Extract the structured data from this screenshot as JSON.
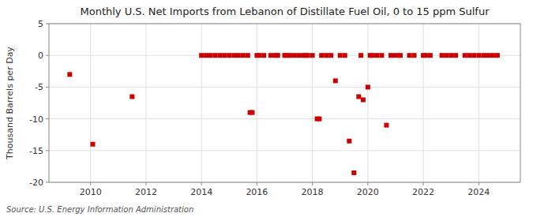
{
  "chart_data": {
    "type": "scatter",
    "title": "Monthly U.S. Net Imports from Lebanon of Distillate Fuel Oil, 0 to 15 ppm Sulfur",
    "y_label": "Thousand Barrels per Day",
    "source": "Source: U.S. Energy Information Administration",
    "x": [
      2009.25,
      2010.08,
      2011.5,
      2014.0,
      2014.17,
      2014.33,
      2014.5,
      2014.67,
      2014.83,
      2015.0,
      2015.17,
      2015.33,
      2015.5,
      2015.67,
      2015.75,
      2015.83,
      2016.0,
      2016.08,
      2016.25,
      2016.5,
      2016.67,
      2016.75,
      2017.0,
      2017.08,
      2017.17,
      2017.33,
      2017.5,
      2017.67,
      2017.75,
      2017.83,
      2018.0,
      2018.17,
      2018.25,
      2018.33,
      2018.5,
      2018.67,
      2018.83,
      2019.0,
      2019.17,
      2019.33,
      2019.5,
      2019.67,
      2019.75,
      2019.83,
      2020.0,
      2020.08,
      2020.17,
      2020.33,
      2020.5,
      2020.67,
      2020.83,
      2021.0,
      2021.17,
      2021.5,
      2021.67,
      2022.0,
      2022.08,
      2022.25,
      2022.67,
      2022.83,
      2023.0,
      2023.17,
      2023.5,
      2023.67,
      2023.83,
      2024.0,
      2024.17,
      2024.33,
      2024.5,
      2024.67
    ],
    "values": [
      -3.0,
      -14.0,
      -6.5,
      0.0,
      0.0,
      0.0,
      0.0,
      0.0,
      0.0,
      0.0,
      0.0,
      0.0,
      0.0,
      0.0,
      -9.0,
      -9.0,
      0.0,
      0.0,
      0.0,
      0.0,
      0.0,
      0.0,
      0.0,
      0.0,
      0.0,
      0.0,
      0.0,
      0.0,
      0.0,
      0.0,
      0.0,
      -10.0,
      -10.0,
      0.0,
      0.0,
      0.0,
      -4.0,
      0.0,
      0.0,
      -13.5,
      -18.5,
      -6.5,
      0.0,
      -7.0,
      -5.0,
      0.0,
      0.0,
      0.0,
      0.0,
      -11.0,
      0.0,
      0.0,
      0.0,
      0.0,
      0.0,
      0.0,
      0.0,
      0.0,
      0.0,
      0.0,
      0.0,
      0.0,
      0.0,
      0.0,
      0.0,
      0.0,
      0.0,
      0.0,
      0.0,
      0.0
    ],
    "color": "#cc0000",
    "marker": "square",
    "xlim": [
      2008.5,
      2025.5
    ],
    "xticks": [
      2010,
      2012,
      2014,
      2016,
      2018,
      2020,
      2022,
      2024
    ],
    "ylim": [
      -20,
      5
    ],
    "yticks": [
      -20,
      -15,
      -10,
      -5,
      0,
      5
    ],
    "grid": true
  }
}
